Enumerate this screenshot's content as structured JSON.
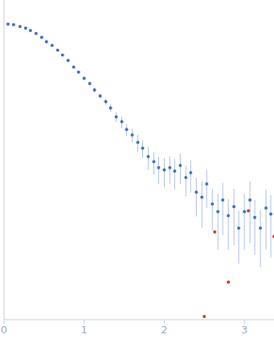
{
  "chart_data": {
    "type": "scatter",
    "log": "y",
    "tick_labels": "x",
    "marker": "circle",
    "color": "#3b6fc4",
    "xlim": [
      0,
      3.37
    ],
    "xticks": [
      0,
      1,
      2,
      3
    ],
    "ylim": [
      0.0002,
      2
    ],
    "yticks": [
      0.001,
      0.01,
      0.1,
      1
    ],
    "x": [
      0.05,
      0.12,
      0.2,
      0.27,
      0.33,
      0.4,
      0.47,
      0.53,
      0.6,
      0.67,
      0.73,
      0.8,
      0.87,
      0.93,
      1.0,
      1.07,
      1.13,
      1.2,
      1.27,
      1.33,
      1.4,
      1.47,
      1.53,
      1.6,
      1.67,
      1.73,
      1.8,
      1.87,
      1.93,
      2.0,
      2.07,
      2.13,
      2.2,
      2.27,
      2.33,
      2.4,
      2.47,
      2.53,
      2.6,
      2.67,
      2.73,
      2.8,
      2.87,
      2.93,
      3.0,
      3.07,
      3.13,
      3.2,
      3.27,
      3.33
    ],
    "values": [
      1.0,
      0.98,
      0.93,
      0.89,
      0.83,
      0.76,
      0.68,
      0.6,
      0.54,
      0.47,
      0.41,
      0.35,
      0.29,
      0.25,
      0.21,
      0.18,
      0.15,
      0.126,
      0.107,
      0.089,
      0.069,
      0.06,
      0.048,
      0.041,
      0.033,
      0.028,
      0.022,
      0.019,
      0.016,
      0.015,
      0.016,
      0.0145,
      0.017,
      0.012,
      0.0138,
      0.0079,
      0.0068,
      0.01,
      0.0056,
      0.0045,
      0.0063,
      0.004,
      0.0052,
      0.0028,
      0.0045,
      0.0063,
      0.0038,
      0.0028,
      0.005,
      0.0042
    ],
    "errors": [
      0.01,
      0.01,
      0.01,
      0.01,
      0.01,
      0.01,
      0.01,
      0.01,
      0.01,
      0.01,
      0.01,
      0.01,
      0.01,
      0.01,
      0.01,
      0.01,
      0.01,
      0.01,
      0.01,
      0.01,
      0.01,
      0.01,
      0.008,
      0.008,
      0.008,
      0.007,
      0.007,
      0.006,
      0.006,
      0.006,
      0.006,
      0.006,
      0.007,
      0.005,
      0.006,
      0.004,
      0.004,
      0.005,
      0.003,
      0.003,
      0.004,
      0.0025,
      0.0035,
      0.0018,
      0.003,
      0.0045,
      0.0025,
      0.0019,
      0.0035,
      0.003
    ],
    "outliers": {
      "color": "#e0301e",
      "x": [
        2.5,
        2.63,
        2.8,
        3.05,
        3.37
      ],
      "values": [
        0.00022,
        0.0025,
        0.00059,
        0.0046,
        0.0022
      ]
    }
  }
}
